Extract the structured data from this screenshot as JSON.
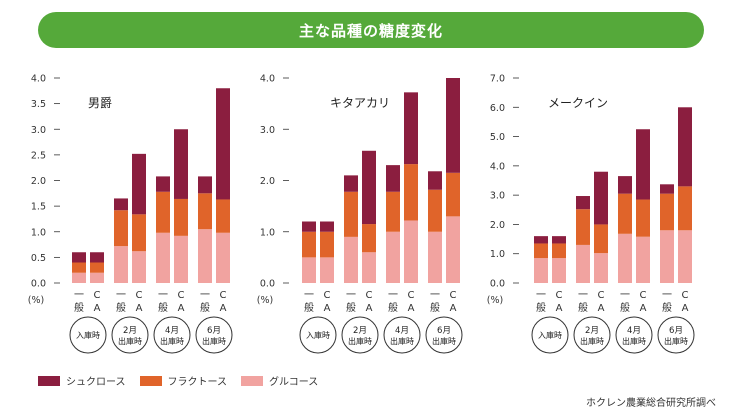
{
  "header": {
    "title": "主な品種の糖度変化"
  },
  "colors": {
    "banner": "#55a93a",
    "sucrose": "#8b1e3f",
    "fructose": "#e0642a",
    "glucose": "#f1a3a0"
  },
  "legend": [
    {
      "label": "シュクロース",
      "color": "#8b1e3f"
    },
    {
      "label": "フラクトース",
      "color": "#e0642a"
    },
    {
      "label": "グルコース",
      "color": "#f1a3a0"
    }
  ],
  "source": "ホクレン農業総合研究所調べ",
  "chart_data": [
    {
      "type": "bar",
      "stacked": true,
      "title": "男爵",
      "unit": "(%)",
      "ylim": [
        0,
        4.0
      ],
      "yticks": [
        "0.0",
        "0.5",
        "1.0",
        "1.5",
        "2.0",
        "2.5",
        "3.0",
        "3.5",
        "4.0"
      ],
      "bar_labels": [
        "一般",
        "CA"
      ],
      "groups": [
        {
          "label": [
            "入庫時"
          ]
        },
        {
          "label": [
            "2月",
            "出庫時"
          ]
        },
        {
          "label": [
            "4月",
            "出庫時"
          ]
        },
        {
          "label": [
            "6月",
            "出庫時"
          ]
        }
      ],
      "series": [
        {
          "name": "グルコース",
          "values": [
            0.2,
            0.2,
            0.72,
            0.62,
            0.98,
            0.92,
            1.05,
            0.98
          ]
        },
        {
          "name": "フラクトース",
          "values": [
            0.2,
            0.2,
            0.7,
            0.72,
            0.8,
            0.72,
            0.7,
            0.65
          ]
        },
        {
          "name": "シュクロース",
          "values": [
            0.2,
            0.2,
            0.23,
            1.18,
            0.3,
            1.36,
            0.33,
            2.17
          ]
        }
      ]
    },
    {
      "type": "bar",
      "stacked": true,
      "title": "キタアカリ",
      "unit": "(%)",
      "ylim": [
        0,
        4.0
      ],
      "yticks": [
        "0.0",
        "1.0",
        "2.0",
        "3.0",
        "4.0"
      ],
      "bar_labels": [
        "一般",
        "CA"
      ],
      "groups": [
        {
          "label": [
            "入庫時"
          ]
        },
        {
          "label": [
            "2月",
            "出庫時"
          ]
        },
        {
          "label": [
            "4月",
            "出庫時"
          ]
        },
        {
          "label": [
            "6月",
            "出庫時"
          ]
        }
      ],
      "series": [
        {
          "name": "グルコース",
          "values": [
            0.5,
            0.5,
            0.9,
            0.6,
            1.0,
            1.22,
            1.0,
            1.3
          ]
        },
        {
          "name": "フラクトース",
          "values": [
            0.5,
            0.5,
            0.88,
            0.55,
            0.78,
            1.1,
            0.82,
            0.85
          ]
        },
        {
          "name": "シュクロース",
          "values": [
            0.2,
            0.2,
            0.32,
            1.43,
            0.52,
            1.4,
            0.36,
            1.85
          ]
        }
      ]
    },
    {
      "type": "bar",
      "stacked": true,
      "title": "メークイン",
      "unit": "(%)",
      "ylim": [
        0,
        7.0
      ],
      "yticks": [
        "0.0",
        "1.0",
        "2.0",
        "3.0",
        "4.0",
        "5.0",
        "6.0",
        "7.0"
      ],
      "bar_labels": [
        "一般",
        "CA"
      ],
      "groups": [
        {
          "label": [
            "入庫時"
          ]
        },
        {
          "label": [
            "2月",
            "出庫時"
          ]
        },
        {
          "label": [
            "4月",
            "出庫時"
          ]
        },
        {
          "label": [
            "6月",
            "出庫時"
          ]
        }
      ],
      "series": [
        {
          "name": "グルコース",
          "values": [
            0.85,
            0.85,
            1.3,
            1.02,
            1.68,
            1.58,
            1.8,
            1.8
          ]
        },
        {
          "name": "フラクトース",
          "values": [
            0.5,
            0.5,
            1.22,
            0.98,
            1.37,
            1.27,
            1.25,
            1.5
          ]
        },
        {
          "name": "シュクロース",
          "values": [
            0.25,
            0.25,
            0.45,
            1.8,
            0.6,
            2.4,
            0.32,
            2.7
          ]
        }
      ]
    }
  ]
}
